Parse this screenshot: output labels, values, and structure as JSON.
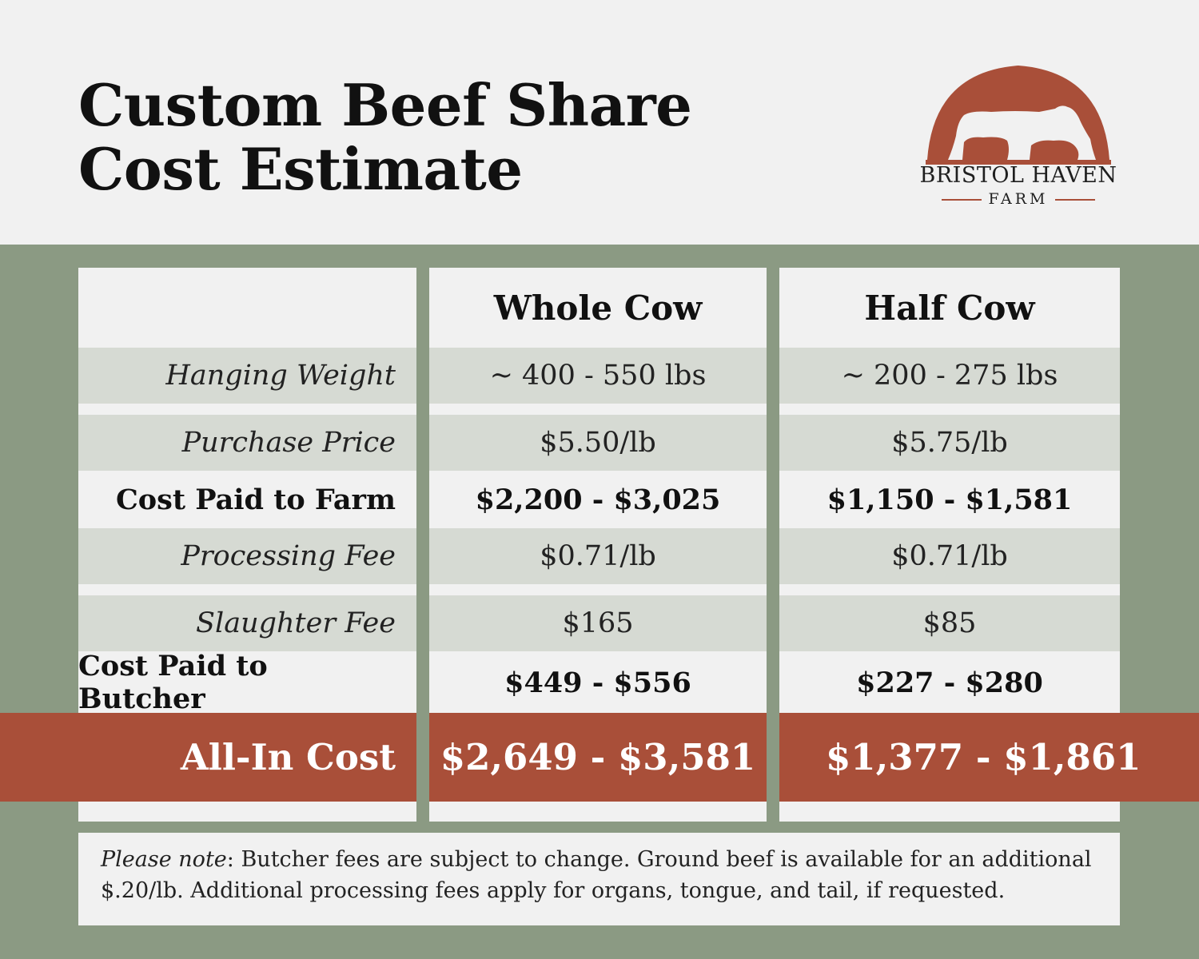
{
  "title": {
    "line1": "Custom Beef Share",
    "line2": "Cost Estimate"
  },
  "logo": {
    "name": "BRISTOL HAVEN",
    "farm": "FARM"
  },
  "colors": {
    "accent": "#a94f39",
    "band": "#8b9a83",
    "row_shade": "#d6dad3",
    "background": "#f1f1f1"
  },
  "table": {
    "columns": [
      "",
      "Whole Cow",
      "Half Cow"
    ],
    "rows": [
      {
        "label": "Hanging Weight",
        "whole": "~ 400 - 550 lbs",
        "half": "~ 200 - 275 lbs"
      },
      {
        "label": "Purchase Price",
        "whole": "$5.50/lb",
        "half": "$5.75/lb"
      },
      {
        "label": "Cost Paid to Farm",
        "whole": "$2,200 - $3,025",
        "half": "$1,150 - $1,581"
      },
      {
        "label": "Processing Fee",
        "whole": "$0.71/lb",
        "half": "$0.71/lb"
      },
      {
        "label": "Slaughter Fee",
        "whole": "$165",
        "half": "$85"
      },
      {
        "label": "Cost Paid to Butcher",
        "whole": "$449 - $556",
        "half": "$227 - $280"
      }
    ],
    "total": {
      "label": "All-In Cost",
      "whole": "$2,649 - $3,581",
      "half": "$1,377 - $1,861"
    }
  },
  "note": {
    "lead": "Please note",
    "text": ": Butcher fees are subject to change. Ground beef is available for an additional $.20/lb. Additional processing fees apply for organs, tongue, and tail, if requested."
  }
}
